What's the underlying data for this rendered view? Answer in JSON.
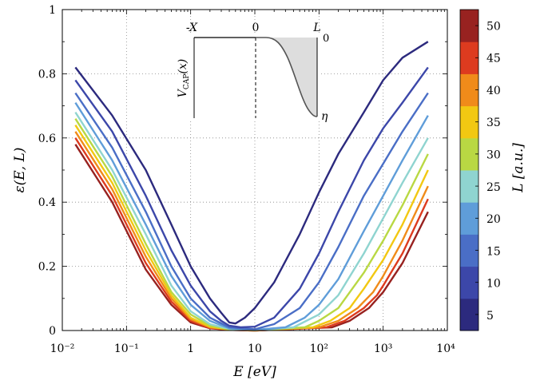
{
  "chart_data": {
    "type": "line",
    "x_scale": "log",
    "xlim": [
      0.01,
      10000
    ],
    "ylim": [
      0,
      1
    ],
    "grid": true,
    "xlabel": "E [eV]",
    "ylabel": "ε(E, L)",
    "x_tick_labels": [
      "10⁻²",
      "10⁻¹",
      "1",
      "10",
      "10²",
      "10³",
      "10⁴"
    ],
    "y_tick_labels": [
      "0",
      "0.2",
      "0.4",
      "0.6",
      "0.8",
      "1"
    ],
    "colorbar": {
      "label": "L [a.u.]",
      "tick_labels": [
        "5",
        "10",
        "15",
        "20",
        "25",
        "30",
        "35",
        "40",
        "45",
        "50"
      ],
      "levels": [
        5,
        10,
        15,
        20,
        25,
        30,
        35,
        40,
        45,
        50
      ],
      "colors": [
        "#2c2a7e",
        "#3c47a9",
        "#4a6ec6",
        "#5f9dd9",
        "#8fd4d0",
        "#b9d843",
        "#f2c812",
        "#f08b1a",
        "#dd3b1f",
        "#982220"
      ]
    },
    "series": [
      {
        "L": 5,
        "color": "#2c2a7e",
        "x": [
          0.016,
          0.06,
          0.2,
          0.5,
          1.0,
          2.0,
          3.0,
          4.0,
          5.0,
          7.0,
          10,
          20,
          50,
          100,
          200,
          500,
          1000,
          2000,
          5000
        ],
        "y": [
          0.82,
          0.67,
          0.5,
          0.33,
          0.2,
          0.1,
          0.055,
          0.025,
          0.022,
          0.04,
          0.07,
          0.15,
          0.3,
          0.43,
          0.55,
          0.68,
          0.78,
          0.85,
          0.9
        ]
      },
      {
        "L": 10,
        "color": "#3c47a9",
        "x": [
          0.016,
          0.06,
          0.2,
          0.5,
          1.0,
          2.0,
          3.0,
          4.0,
          6.0,
          10,
          20,
          50,
          100,
          200,
          500,
          1000,
          2000,
          5000
        ],
        "y": [
          0.78,
          0.62,
          0.42,
          0.25,
          0.14,
          0.06,
          0.03,
          0.015,
          0.01,
          0.012,
          0.04,
          0.13,
          0.24,
          0.37,
          0.53,
          0.63,
          0.71,
          0.82
        ]
      },
      {
        "L": 15,
        "color": "#4a6ec6",
        "x": [
          0.016,
          0.06,
          0.2,
          0.5,
          1.0,
          2.0,
          4.0,
          10,
          20,
          50,
          100,
          200,
          500,
          1000,
          2000,
          5000
        ],
        "y": [
          0.74,
          0.57,
          0.37,
          0.2,
          0.1,
          0.04,
          0.01,
          0.004,
          0.02,
          0.07,
          0.15,
          0.26,
          0.42,
          0.52,
          0.62,
          0.74
        ]
      },
      {
        "L": 20,
        "color": "#5f9dd9",
        "x": [
          0.016,
          0.06,
          0.2,
          0.5,
          1.0,
          2.0,
          4.0,
          10,
          30,
          60,
          100,
          200,
          500,
          1000,
          2000,
          5000
        ],
        "y": [
          0.71,
          0.53,
          0.33,
          0.17,
          0.08,
          0.03,
          0.007,
          0.002,
          0.01,
          0.04,
          0.08,
          0.16,
          0.31,
          0.42,
          0.53,
          0.67
        ]
      },
      {
        "L": 25,
        "color": "#8fd4d0",
        "x": [
          0.016,
          0.06,
          0.2,
          0.5,
          1.0,
          2.0,
          4.0,
          10,
          40,
          100,
          200,
          500,
          1000,
          2000,
          5000
        ],
        "y": [
          0.68,
          0.5,
          0.3,
          0.14,
          0.06,
          0.02,
          0.005,
          0.001,
          0.01,
          0.05,
          0.11,
          0.24,
          0.35,
          0.46,
          0.6
        ]
      },
      {
        "L": 30,
        "color": "#b9d843",
        "x": [
          0.016,
          0.06,
          0.2,
          0.5,
          1.0,
          2.0,
          4.0,
          10,
          60,
          100,
          200,
          500,
          1000,
          2000,
          5000
        ],
        "y": [
          0.66,
          0.48,
          0.27,
          0.12,
          0.05,
          0.015,
          0.004,
          0.001,
          0.01,
          0.03,
          0.07,
          0.18,
          0.28,
          0.39,
          0.55
        ]
      },
      {
        "L": 35,
        "color": "#f2c812",
        "x": [
          0.016,
          0.06,
          0.2,
          0.5,
          1.0,
          2.0,
          4.0,
          10,
          80,
          150,
          300,
          500,
          1000,
          2000,
          5000
        ],
        "y": [
          0.64,
          0.46,
          0.25,
          0.11,
          0.04,
          0.012,
          0.003,
          0.001,
          0.01,
          0.03,
          0.07,
          0.13,
          0.22,
          0.33,
          0.5
        ]
      },
      {
        "L": 40,
        "color": "#f08b1a",
        "x": [
          0.016,
          0.06,
          0.2,
          0.5,
          1.0,
          2.0,
          4.0,
          10,
          100,
          200,
          400,
          700,
          1000,
          2000,
          5000
        ],
        "y": [
          0.62,
          0.44,
          0.23,
          0.1,
          0.035,
          0.01,
          0.003,
          0.0,
          0.01,
          0.03,
          0.07,
          0.12,
          0.17,
          0.28,
          0.45
        ]
      },
      {
        "L": 45,
        "color": "#dd3b1f",
        "x": [
          0.016,
          0.06,
          0.2,
          0.5,
          1.0,
          2.0,
          4.0,
          10,
          130,
          250,
          500,
          800,
          1000,
          2000,
          5000
        ],
        "y": [
          0.6,
          0.42,
          0.21,
          0.09,
          0.03,
          0.008,
          0.002,
          0.0,
          0.01,
          0.03,
          0.07,
          0.11,
          0.14,
          0.24,
          0.41
        ]
      },
      {
        "L": 50,
        "color": "#982220",
        "x": [
          0.016,
          0.06,
          0.2,
          0.5,
          1.0,
          2.0,
          4.0,
          10,
          160,
          300,
          600,
          1000,
          2000,
          5000
        ],
        "y": [
          0.58,
          0.4,
          0.19,
          0.08,
          0.025,
          0.007,
          0.002,
          0.0,
          0.01,
          0.03,
          0.07,
          0.12,
          0.21,
          0.37
        ]
      }
    ]
  },
  "inset": {
    "label_neg_x": "-X",
    "label_zero": "0",
    "label_L": "L",
    "label_right_top": "0",
    "label_eta": "η",
    "ylabel": "V",
    "ylabel_sub": "CAP",
    "ylabel_arg": "(x)"
  }
}
